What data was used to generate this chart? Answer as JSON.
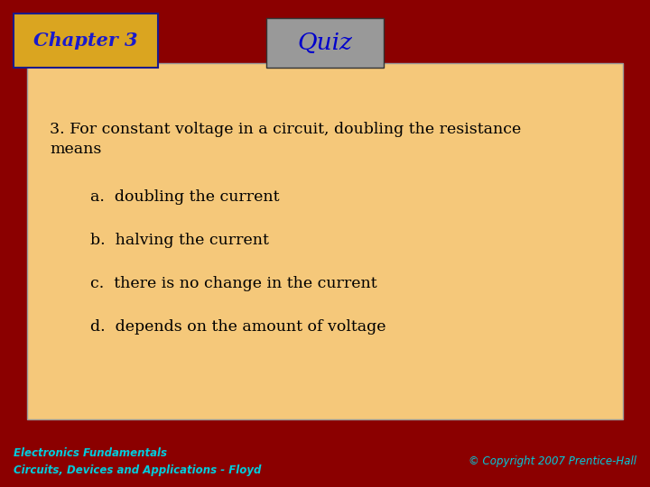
{
  "bg_color": "#8B0000",
  "panel_color": "#F5C87A",
  "chapter_box_color": "#DAA520",
  "chapter_box_border": "#1a1a8c",
  "chapter_text": "Chapter 3",
  "chapter_text_color": "#1a1aCC",
  "quiz_box_color": "#999999",
  "quiz_box_border": "#333333",
  "quiz_text": "Quiz",
  "quiz_text_color": "#0000CC",
  "question_text": "3. For constant voltage in a circuit, doubling the resistance\nmeans",
  "answers": [
    "a.  doubling the current",
    "b.  halving the current",
    "c.  there is no change in the current",
    "d.  depends on the amount of voltage"
  ],
  "answer_color": "#000000",
  "footer_left_line1": "Electronics Fundamentals",
  "footer_left_line2": "Circuits, Devices and Applications - Floyd",
  "footer_right": "© Copyright 2007 Prentice-Hall",
  "footer_color": "#00CCDD",
  "question_color": "#000000",
  "question_fontsize": 12.5,
  "answer_fontsize": 12.5,
  "chapter_fontsize": 15,
  "quiz_fontsize": 19,
  "footer_fontsize": 8.5
}
